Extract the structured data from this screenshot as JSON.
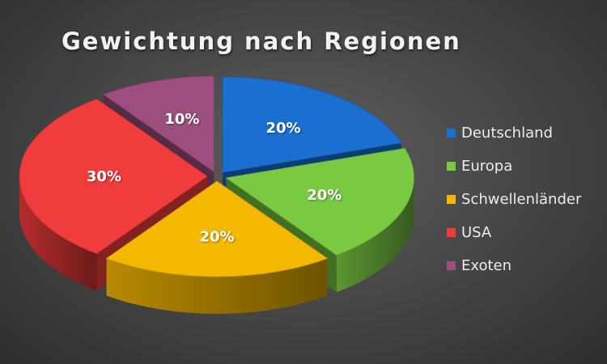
{
  "chart_data": {
    "type": "pie",
    "title": "Gewichtung nach Regionen",
    "slices": [
      {
        "label": "Deutschland",
        "value": 20,
        "display": "20%",
        "color": "#1a6fd1"
      },
      {
        "label": "Europa",
        "value": 20,
        "display": "20%",
        "color": "#7ac943"
      },
      {
        "label": "Schwellenländer",
        "value": 20,
        "display": "20%",
        "color": "#f5b800"
      },
      {
        "label": "USA",
        "value": 30,
        "display": "30%",
        "color": "#f03c3c"
      },
      {
        "label": "Exoten",
        "value": 10,
        "display": "10%",
        "color": "#9c4f7e"
      }
    ],
    "legend_position": "right",
    "style": "3d-exploded"
  }
}
